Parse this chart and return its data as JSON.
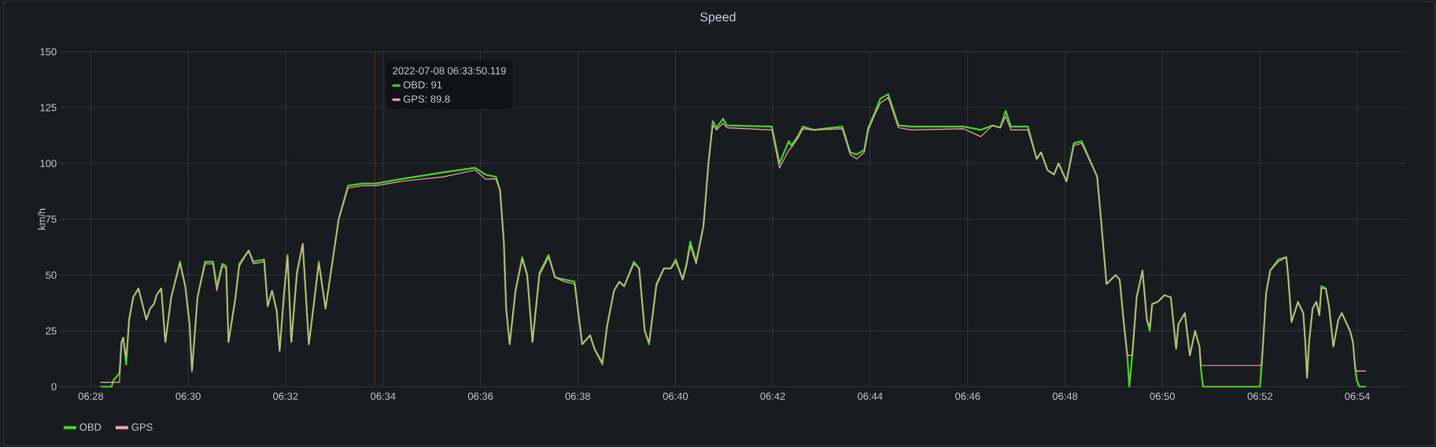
{
  "chart_data": {
    "type": "line",
    "title": "Speed",
    "ylabel": "km/h",
    "x": [
      6.47,
      6.4738,
      6.4745,
      6.4765,
      6.4772,
      6.4778,
      6.4788,
      6.4798,
      6.4812,
      6.483,
      6.4857,
      6.487,
      6.4883,
      6.4892,
      6.4908,
      6.4922,
      6.4942,
      6.4972,
      6.499,
      6.5005,
      6.5013,
      6.5032,
      6.5058,
      6.5085,
      6.5098,
      6.5117,
      6.513,
      6.5138,
      6.5162,
      6.5175,
      6.5207,
      6.5223,
      6.526,
      6.5272,
      6.5287,
      6.5303,
      6.5313,
      6.5327,
      6.534,
      6.5353,
      6.5372,
      6.5392,
      6.5413,
      6.543,
      6.5447,
      6.547,
      6.5515,
      6.5547,
      6.5597,
      6.5642,
      6.573,
      6.5873,
      6.5982,
      6.6017,
      6.6053,
      6.6067,
      6.608,
      6.6088,
      6.61,
      6.612,
      6.6143,
      6.616,
      6.6178,
      6.6202,
      6.6233,
      6.6255,
      6.6287,
      6.6322,
      6.6348,
      6.6375,
      6.639,
      6.6417,
      6.6433,
      6.6457,
      6.6475,
      6.6492,
      6.6525,
      6.6543,
      6.6562,
      6.6577,
      6.6602,
      6.6628,
      6.6652,
      6.6668,
      6.6692,
      6.6705,
      6.6718,
      6.6738,
      6.6763,
      6.678,
      6.6795,
      6.6808,
      6.683,
      6.6843,
      6.6997,
      6.7023,
      6.7055,
      6.7063,
      6.7085,
      6.7103,
      6.714,
      6.7238,
      6.7265,
      6.7287,
      6.7313,
      6.7327,
      6.735,
      6.7368,
      6.7395,
      6.743,
      6.7473,
      6.7653,
      6.7712,
      6.7752,
      6.7778,
      6.7797,
      6.7815,
      6.7873,
      6.7903,
      6.7918,
      6.794,
      6.7962,
      6.7978,
      6.8005,
      6.803,
      6.8057,
      6.811,
      6.8123,
      6.8142,
      6.8173,
      6.8187,
      6.82,
      6.8213,
      6.822,
      6.823,
      6.8245,
      6.8265,
      6.828,
      6.829,
      6.8298,
      6.8317,
      6.834,
      6.8362,
      6.838,
      6.8388,
      6.841,
      6.8427,
      6.8445,
      6.846,
      6.8465,
      6.8472,
      6.8667,
      6.8673,
      6.8688,
      6.8702,
      6.873,
      6.8757,
      6.8763,
      6.8775,
      6.8797,
      6.8815,
      6.8822,
      6.8828,
      6.8835,
      6.8847,
      6.886,
      6.887,
      6.8877,
      6.8892,
      6.8903,
      6.8918,
      6.8935,
      6.8947,
      6.8975,
      6.8985,
      6.8993,
      6.8998,
      6.9007,
      6.903
    ],
    "series": [
      {
        "name": "OBD",
        "color": "#4fd12a",
        "values": [
          0,
          0,
          3,
          6,
          20,
          22,
          10,
          30,
          40,
          44,
          30,
          35,
          37,
          41,
          44,
          20,
          40,
          56,
          45,
          28,
          7,
          40,
          56,
          56,
          45,
          55,
          54,
          20,
          40,
          55,
          61,
          56,
          57,
          36,
          43,
          34,
          16,
          40,
          59,
          20,
          51,
          64,
          19,
          37,
          56,
          35,
          75,
          90,
          91,
          91,
          93,
          96,
          98,
          95,
          94,
          88,
          65,
          35,
          19,
          43,
          58,
          50,
          20,
          51,
          59,
          49,
          48,
          47,
          19,
          23,
          17,
          10,
          27,
          43,
          47,
          45,
          56,
          53,
          25,
          19,
          46,
          53,
          53,
          57,
          48,
          55,
          65,
          56,
          72,
          100,
          119,
          116,
          120,
          117,
          116.5,
          100,
          110,
          108,
          112,
          116.5,
          115,
          116.5,
          105,
          104,
          106,
          116,
          123,
          129,
          131,
          117,
          116.5,
          116.5,
          115,
          117,
          116,
          123.5,
          116.5,
          116.5,
          102,
          105,
          97,
          95,
          100,
          92,
          109,
          110,
          94,
          75,
          46,
          50,
          48,
          30,
          14,
          0,
          14,
          40,
          52,
          30,
          25,
          37,
          38,
          41,
          40,
          17,
          28,
          33,
          14,
          25,
          18,
          8,
          0,
          0,
          10,
          42,
          52,
          57,
          58,
          50,
          29,
          38,
          33,
          20,
          4,
          20,
          35,
          38,
          32,
          45,
          44,
          36,
          18,
          30,
          33,
          25,
          20,
          8,
          3,
          0,
          0
        ]
      },
      {
        "name": "GPS",
        "color": "#f7a8b0",
        "values": [
          2,
          2,
          2,
          2,
          20,
          22,
          13,
          30,
          40,
          44,
          30,
          35,
          37,
          41,
          44,
          20,
          40,
          55,
          45,
          28,
          7,
          40,
          55,
          55,
          43,
          54,
          53,
          20,
          40,
          54,
          61,
          55,
          56,
          36,
          43,
          34,
          16,
          40,
          58,
          20,
          50,
          64,
          19,
          37,
          55,
          35,
          75,
          89,
          90,
          90,
          92,
          94,
          97,
          93,
          93,
          88,
          65,
          35,
          19,
          43,
          57,
          50,
          20,
          50,
          58,
          49,
          47,
          46,
          19,
          23,
          17,
          11,
          27,
          43,
          47,
          45,
          55,
          53,
          25,
          20,
          45,
          53,
          53,
          56,
          48,
          54,
          63,
          55,
          72,
          100,
          117,
          115,
          118,
          116,
          115,
          98,
          106,
          107,
          111,
          115.5,
          115,
          115.5,
          104,
          102,
          105,
          115,
          122,
          127,
          129.5,
          116,
          115,
          115.5,
          112,
          117,
          116,
          121,
          115,
          115,
          102,
          105,
          97,
          95,
          100,
          92,
          108,
          109,
          94,
          75,
          46,
          50,
          48,
          30,
          14,
          14,
          14,
          40,
          52,
          30,
          27,
          37,
          38,
          41,
          40,
          17,
          28,
          33,
          14,
          25,
          18,
          9.5,
          9.5,
          9.5,
          10,
          42,
          52,
          56,
          58,
          50,
          29,
          38,
          33,
          20,
          4,
          20,
          35,
          38,
          32,
          44,
          44,
          36,
          18,
          30,
          33,
          25,
          20,
          8,
          7,
          7,
          7
        ]
      }
    ],
    "xlim": [
      6.456,
      6.9167
    ],
    "xticks": [
      {
        "value": 6.4667,
        "label": "06:28"
      },
      {
        "value": 6.5,
        "label": "06:30"
      },
      {
        "value": 6.5333,
        "label": "06:32"
      },
      {
        "value": 6.5667,
        "label": "06:34"
      },
      {
        "value": 6.6,
        "label": "06:36"
      },
      {
        "value": 6.6333,
        "label": "06:38"
      },
      {
        "value": 6.6667,
        "label": "06:40"
      },
      {
        "value": 6.7,
        "label": "06:42"
      },
      {
        "value": 6.7333,
        "label": "06:44"
      },
      {
        "value": 6.7667,
        "label": "06:46"
      },
      {
        "value": 6.8,
        "label": "06:48"
      },
      {
        "value": 6.8333,
        "label": "06:50"
      },
      {
        "value": 6.8667,
        "label": "06:52"
      },
      {
        "value": 6.9,
        "label": "06:54"
      }
    ],
    "ylim": [
      0,
      150
    ],
    "yticks": [
      0,
      25,
      50,
      75,
      100,
      125,
      150
    ],
    "grid": true,
    "legend": "bottom left",
    "marker": "none",
    "line_style": "solid",
    "ref_lines": [
      {
        "axis": "x",
        "value": 6.5639,
        "color": "#8b1a1a"
      }
    ],
    "annotations": [
      "2022-07-08 06:33:50.119",
      "OBD:    91",
      "GPS:    89.8"
    ]
  }
}
